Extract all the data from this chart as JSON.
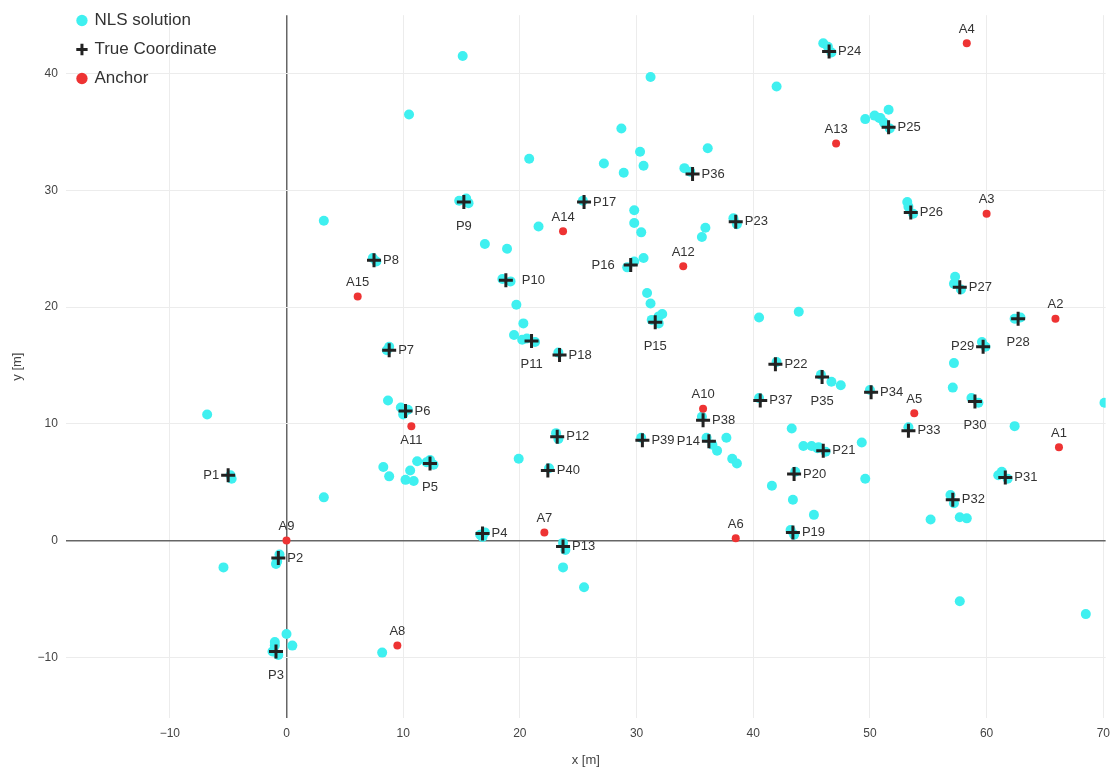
{
  "chart_data": {
    "type": "scatter",
    "xlabel": "x [m]",
    "ylabel": "y [m]",
    "xlim": [
      -18.9,
      70.2
    ],
    "ylim": [
      -15.2,
      45
    ],
    "xticks": [
      -10,
      0,
      10,
      20,
      30,
      40,
      50,
      60,
      70
    ],
    "yticks": [
      -10,
      0,
      10,
      20,
      30,
      40
    ],
    "grid": true,
    "legend": "top left",
    "series": [
      {
        "name": "NLS solution",
        "color": "#3ff0f0",
        "marker": "circle",
        "x": [
          -4.7,
          -4.8,
          -0.8,
          -0.6,
          -0.9,
          -1.0,
          -0.7,
          -1.2,
          16.6,
          17.0,
          16.8,
          12.0,
          12.6,
          12.3,
          9.8,
          10.0,
          10.4,
          8.8,
          8.6,
          7.4,
          7.7,
          14.8,
          15.4,
          15.6,
          18.5,
          19.2,
          20.6,
          21.3,
          20.2,
          23.1,
          23.3,
          23.7,
          23.9,
          36.0,
          36.5,
          31.3,
          31.9,
          29.8,
          29.2,
          25.4,
          23.3,
          43.2,
          43.5,
          43.6,
          45.5,
          46.2,
          42.0,
          38.3,
          38.6,
          46.0,
          46.4,
          46.7,
          50.8,
          51.2,
          51.7,
          53.3,
          53.7,
          57.2,
          57.8,
          62.4,
          62.9,
          59.6,
          59.9,
          58.7,
          59.3,
          61.3,
          61.8,
          61.0,
          56.9,
          57.2,
          53.3,
          50.0,
          45.8,
          34.6,
          40.5,
          35.6,
          30.4,
          22.5,
          -6.8,
          -5.4,
          3.2,
          3.2,
          15.1,
          10.5,
          31.2,
          42.0,
          20.8,
          27.2,
          28.7,
          30.3,
          30.6,
          28.9,
          34.1,
          36.1,
          29.8,
          29.8,
          21.6,
          17.0,
          18.9,
          35.6,
          35.9,
          30.4,
          30.6,
          30.9,
          31.2,
          31.9,
          32.2,
          19.7,
          20.3,
          19.5,
          19.9,
          23.7,
          25.5,
          8.7,
          8.8,
          8.3,
          10.2,
          10.9,
          10.6,
          11.2,
          8.2,
          0.0,
          0.5,
          -1.0,
          40.5,
          43.9,
          49.6,
          50.4,
          50.9,
          51.6,
          46.7,
          47.5,
          49.3,
          49.6,
          45.2,
          43.4,
          41.6,
          43.3,
          44.3,
          45.0,
          45.6,
          37.7,
          36.9,
          38.2,
          38.6,
          57.2,
          57.1,
          62.4,
          55.2,
          57.7,
          58.3,
          57.7,
          68.5,
          70.1,
          57.3,
          53.2
        ],
        "values": [
          5.3,
          5.6,
          -1.8,
          -1.2,
          -2.0,
          -9.0,
          -9.8,
          -9.5,
          0.5,
          0.7,
          0.3,
          6.7,
          6.5,
          6.9,
          11.4,
          10.8,
          11.2,
          16.6,
          16.3,
          24.2,
          23.9,
          29.1,
          29.3,
          28.9,
          22.4,
          22.2,
          17.3,
          17.0,
          17.2,
          9.2,
          8.7,
          -0.2,
          -0.8,
          8.8,
          8.2,
          18.9,
          18.6,
          23.9,
          23.4,
          29.1,
          16.1,
          0.9,
          0.5,
          5.9,
          7.9,
          7.6,
          15.3,
          27.6,
          27.1,
          42.6,
          42.3,
          41.8,
          36.2,
          35.8,
          35.3,
          28.6,
          28.0,
          22.0,
          21.5,
          19.0,
          19.1,
          17.0,
          16.6,
          12.2,
          11.8,
          5.9,
          5.3,
          5.6,
          3.9,
          3.2,
          9.7,
          12.9,
          14.2,
          31.6,
          12.2,
          10.6,
          8.8,
          6.2,
          10.8,
          -2.3,
          3.7,
          27.4,
          41.5,
          36.5,
          39.7,
          38.9,
          32.7,
          32.3,
          35.3,
          33.3,
          32.1,
          31.5,
          31.9,
          33.6,
          28.3,
          27.2,
          26.9,
          25.4,
          25.0,
          26.0,
          26.8,
          26.4,
          24.2,
          21.2,
          20.3,
          19.2,
          19.4,
          20.2,
          18.6,
          17.6,
          7.0,
          -2.3,
          -4.0,
          12.0,
          5.5,
          6.3,
          5.2,
          5.1,
          6.0,
          6.8,
          -9.6,
          -8.0,
          -9.0,
          -8.7,
          19.1,
          19.6,
          36.1,
          36.4,
          36.2,
          36.9,
          13.6,
          13.3,
          8.4,
          5.3,
          2.2,
          3.5,
          4.7,
          9.6,
          8.1,
          8.1,
          8.0,
          8.8,
          7.7,
          7.0,
          6.6,
          15.2,
          13.1,
          9.8,
          1.8,
          2.0,
          1.9,
          -5.2,
          -6.3,
          11.8,
          22.6,
          29.0
        ]
      },
      {
        "name": "True Coordinate",
        "color": "#222222",
        "marker": "cross",
        "x": [
          -5.0,
          -0.7,
          -0.9,
          16.8,
          12.3,
          10.2,
          8.8,
          7.5,
          15.2,
          18.8,
          21.0,
          23.2,
          23.7,
          36.2,
          31.6,
          29.5,
          25.5,
          23.4,
          43.4,
          43.5,
          46.0,
          41.9,
          38.5,
          46.5,
          51.6,
          53.5,
          57.7,
          62.7,
          59.7,
          59.0,
          61.6,
          57.1,
          53.3,
          50.1,
          45.9,
          34.8,
          40.6,
          35.7,
          30.5,
          22.4
        ],
        "values": [
          5.6,
          -1.5,
          -9.5,
          0.6,
          6.6,
          11.1,
          16.3,
          24.0,
          29.0,
          22.3,
          17.1,
          8.9,
          -0.5,
          8.5,
          18.7,
          23.6,
          29.0,
          15.9,
          0.7,
          5.7,
          7.7,
          15.1,
          27.3,
          41.9,
          35.4,
          28.1,
          21.7,
          19.0,
          16.6,
          11.9,
          5.4,
          3.5,
          9.4,
          12.7,
          14.0,
          31.4,
          12.0,
          10.3,
          8.6,
          6.0
        ]
      },
      {
        "name": "Anchor",
        "color": "#ee3333",
        "marker": "circle",
        "x": [
          66.2,
          65.9,
          60.0,
          58.3,
          53.8,
          38.5,
          22.1,
          9.5,
          0.0,
          35.7,
          10.7,
          34.0,
          47.1,
          23.7,
          6.1
        ],
        "values": [
          8.0,
          19.0,
          28.0,
          42.6,
          10.9,
          0.2,
          0.7,
          -9.0,
          0.0,
          11.3,
          9.8,
          23.5,
          34.0,
          26.5,
          20.9
        ]
      }
    ],
    "annotations": [
      {
        "text": "P1",
        "x": -5.0,
        "y": 5.6
      },
      {
        "text": "P2",
        "x": -0.7,
        "y": -1.5
      },
      {
        "text": "P3",
        "x": -0.9,
        "y": -9.5
      },
      {
        "text": "P4",
        "x": 16.8,
        "y": 0.6
      },
      {
        "text": "P5",
        "x": 12.3,
        "y": 6.6
      },
      {
        "text": "P6",
        "x": 10.2,
        "y": 11.1
      },
      {
        "text": "P7",
        "x": 8.8,
        "y": 16.3
      },
      {
        "text": "P8",
        "x": 7.5,
        "y": 24.0
      },
      {
        "text": "P9",
        "x": 15.2,
        "y": 29.0
      },
      {
        "text": "P10",
        "x": 18.8,
        "y": 22.3
      },
      {
        "text": "P11",
        "x": 21.0,
        "y": 17.1
      },
      {
        "text": "P12",
        "x": 23.2,
        "y": 8.9
      },
      {
        "text": "P13",
        "x": 23.7,
        "y": -0.5
      },
      {
        "text": "P14",
        "x": 36.2,
        "y": 8.5
      },
      {
        "text": "P15",
        "x": 31.6,
        "y": 18.7
      },
      {
        "text": "P16",
        "x": 29.5,
        "y": 23.6
      },
      {
        "text": "P17",
        "x": 25.5,
        "y": 29.0
      },
      {
        "text": "P18",
        "x": 23.4,
        "y": 15.9
      },
      {
        "text": "P19",
        "x": 43.4,
        "y": 0.7
      },
      {
        "text": "P20",
        "x": 43.5,
        "y": 5.7
      },
      {
        "text": "P21",
        "x": 46.0,
        "y": 7.7
      },
      {
        "text": "P22",
        "x": 41.9,
        "y": 15.1
      },
      {
        "text": "P23",
        "x": 38.5,
        "y": 27.3
      },
      {
        "text": "P24",
        "x": 46.5,
        "y": 41.9
      },
      {
        "text": "P25",
        "x": 51.6,
        "y": 35.4
      },
      {
        "text": "P26",
        "x": 53.5,
        "y": 28.1
      },
      {
        "text": "P27",
        "x": 57.7,
        "y": 21.7
      },
      {
        "text": "P28",
        "x": 62.7,
        "y": 19.0
      },
      {
        "text": "P29",
        "x": 59.7,
        "y": 16.6
      },
      {
        "text": "P30",
        "x": 59.0,
        "y": 11.9
      },
      {
        "text": "P31",
        "x": 61.6,
        "y": 5.4
      },
      {
        "text": "P32",
        "x": 57.1,
        "y": 3.5
      },
      {
        "text": "P33",
        "x": 53.3,
        "y": 9.4
      },
      {
        "text": "P34",
        "x": 50.1,
        "y": 12.7
      },
      {
        "text": "P35",
        "x": 45.9,
        "y": 14.0
      },
      {
        "text": "P36",
        "x": 34.8,
        "y": 31.4
      },
      {
        "text": "P37",
        "x": 40.6,
        "y": 12.0
      },
      {
        "text": "P38",
        "x": 35.7,
        "y": 10.3
      },
      {
        "text": "P39",
        "x": 30.5,
        "y": 8.6
      },
      {
        "text": "P40",
        "x": 22.4,
        "y": 6.0
      },
      {
        "text": "A1",
        "x": 66.2,
        "y": 8.0
      },
      {
        "text": "A2",
        "x": 65.9,
        "y": 19.0
      },
      {
        "text": "A3",
        "x": 60.0,
        "y": 28.0
      },
      {
        "text": "A4",
        "x": 58.3,
        "y": 42.6
      },
      {
        "text": "A5",
        "x": 53.8,
        "y": 10.9
      },
      {
        "text": "A6",
        "x": 38.5,
        "y": 0.2
      },
      {
        "text": "A7",
        "x": 22.1,
        "y": 0.7
      },
      {
        "text": "A8",
        "x": 9.5,
        "y": -9.0
      },
      {
        "text": "A9",
        "x": 0.0,
        "y": 0.0
      },
      {
        "text": "A10",
        "x": 35.7,
        "y": 11.3
      },
      {
        "text": "A11",
        "x": 10.7,
        "y": 9.8
      },
      {
        "text": "A12",
        "x": 34.0,
        "y": 23.5
      },
      {
        "text": "A13",
        "x": 47.1,
        "y": 34.0
      },
      {
        "text": "A14",
        "x": 23.7,
        "y": 26.5
      },
      {
        "text": "A15",
        "x": 6.1,
        "y": 20.9
      }
    ]
  }
}
